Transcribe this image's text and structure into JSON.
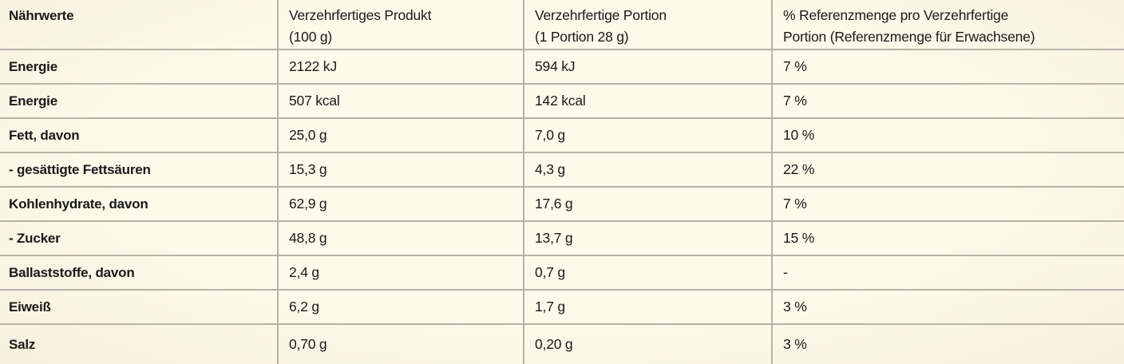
{
  "table": {
    "header": {
      "nutrients": {
        "line1": "Nährwerte",
        "line2": ""
      },
      "product": {
        "line1": "Verzehrfertiges Produkt",
        "line2": "(100 g)"
      },
      "portion": {
        "line1": "Verzehrfertige Portion",
        "line2": "(1 Portion 28 g)"
      },
      "reference": {
        "line1": "% Referenzmenge pro Verzehrfertige",
        "line2": "Portion (Referenzmenge für Erwachsene)"
      }
    },
    "rows": [
      {
        "label": "Energie",
        "per100g": "2122 kJ",
        "portion": "594 kJ",
        "reference": "7 %"
      },
      {
        "label": "Energie",
        "per100g": "507 kcal",
        "portion": "142 kcal",
        "reference": "7 %"
      },
      {
        "label": "Fett, davon",
        "per100g": "25,0 g",
        "portion": "7,0 g",
        "reference": "10 %"
      },
      {
        "label": "- gesättigte Fettsäuren",
        "per100g": "15,3 g",
        "portion": "4,3 g",
        "reference": "22 %"
      },
      {
        "label": "Kohlenhydrate, davon",
        "per100g": "62,9 g",
        "portion": "17,6 g",
        "reference": "7 %"
      },
      {
        "label": "- Zucker",
        "per100g": "48,8 g",
        "portion": "13,7 g",
        "reference": "15 %"
      },
      {
        "label": "Ballaststoffe, davon",
        "per100g": "2,4 g",
        "portion": "0,7 g",
        "reference": "-"
      },
      {
        "label": "Eiweiß",
        "per100g": "6,2 g",
        "portion": "1,7 g",
        "reference": "3 %"
      },
      {
        "label": "Salz",
        "per100g": "0,70 g",
        "portion": "0,20 g",
        "reference": "3 %"
      }
    ]
  },
  "colors": {
    "background": "#fcfaea",
    "border": "#b5b2a8",
    "text": "#1a1a1a"
  }
}
